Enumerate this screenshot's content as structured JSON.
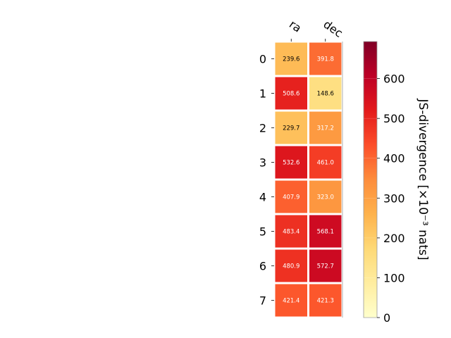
{
  "chart_data": {
    "type": "heatmap",
    "x_labels": [
      "ra",
      "dec"
    ],
    "y_labels": [
      "0",
      "1",
      "2",
      "3",
      "4",
      "5",
      "6",
      "7"
    ],
    "values": [
      [
        239.6,
        391.8
      ],
      [
        508.6,
        148.6
      ],
      [
        229.7,
        317.2
      ],
      [
        532.6,
        461.0
      ],
      [
        407.9,
        323.0
      ],
      [
        483.4,
        568.1
      ],
      [
        480.9,
        572.7
      ],
      [
        421.4,
        421.3
      ]
    ],
    "value_labels": [
      [
        "239.6",
        "391.8"
      ],
      [
        "508.6",
        "148.6"
      ],
      [
        "229.7",
        "317.2"
      ],
      [
        "532.6",
        "461.0"
      ],
      [
        "407.9",
        "323.0"
      ],
      [
        "483.4",
        "568.1"
      ],
      [
        "480.9",
        "572.7"
      ],
      [
        "421.4",
        "421.3"
      ]
    ],
    "colorbar": {
      "label": "JS-divergence [×10⁻³ nats]",
      "range": [
        0,
        693
      ],
      "ticks": [
        "0",
        "100",
        "200",
        "300",
        "400",
        "500",
        "600"
      ],
      "colormap": "YlOrRd"
    },
    "grid": false,
    "colorbar_placement": "right"
  }
}
